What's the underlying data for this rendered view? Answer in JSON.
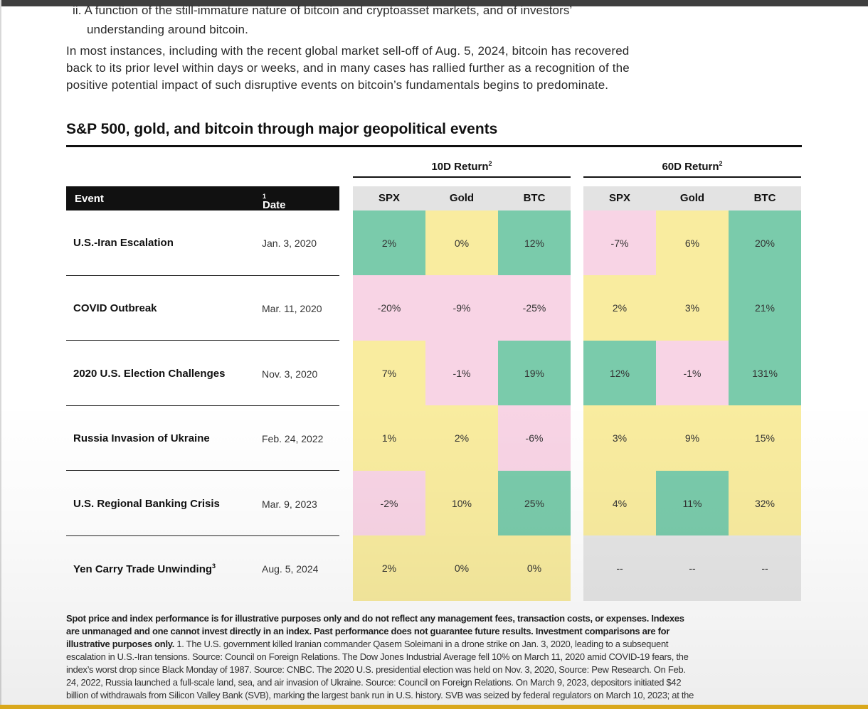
{
  "intro": {
    "item_line1": "ii.  A function of the still-immature nature of bitcoin and cryptoasset markets, and of investors’",
    "item_line2": "understanding around bitcoin.",
    "paragraph_lines": [
      "In most instances, including with the recent global market sell-off of Aug. 5, 2024, bitcoin has recovered",
      "back to its prior level within days or weeks, and in many cases has rallied further as a recognition of the",
      "positive potential impact of such disruptive events on bitcoin’s fundamentals begins to predominate."
    ]
  },
  "table": {
    "title": "S&P 500, gold, and bitcoin through major geopolitical events",
    "group_10d": "10D Return",
    "group_60d": "60D Return",
    "group_sup": "2",
    "header_event": "Event",
    "header_date": "Date",
    "header_date_sup": "1",
    "columns": [
      "SPX",
      "Gold",
      "BTC",
      "SPX",
      "Gold",
      "BTC"
    ],
    "colors": {
      "green": "#7acbab",
      "yellow": "#f9ec9f",
      "pink": "#f8d4e5",
      "gray": "#e6e6e6"
    },
    "rows": [
      {
        "event": "U.S.-Iran Escalation",
        "sup": "",
        "date": "Jan. 3, 2020",
        "values": [
          "2%",
          "0%",
          "12%",
          "-7%",
          "6%",
          "20%"
        ],
        "colors": [
          "green",
          "yellow",
          "green",
          "pink",
          "yellow",
          "green"
        ]
      },
      {
        "event": "COVID Outbreak",
        "sup": "",
        "date": "Mar. 11, 2020",
        "values": [
          "-20%",
          "-9%",
          "-25%",
          "2%",
          "3%",
          "21%"
        ],
        "colors": [
          "pink",
          "pink",
          "pink",
          "yellow",
          "yellow",
          "green"
        ]
      },
      {
        "event": "2020 U.S. Election Challenges",
        "sup": "",
        "date": "Nov. 3, 2020",
        "values": [
          "7%",
          "-1%",
          "19%",
          "12%",
          "-1%",
          "131%"
        ],
        "colors": [
          "yellow",
          "pink",
          "green",
          "green",
          "pink",
          "green"
        ]
      },
      {
        "event": "Russia Invasion of Ukraine",
        "sup": "",
        "date": "Feb. 24, 2022",
        "values": [
          "1%",
          "2%",
          "-6%",
          "3%",
          "9%",
          "15%"
        ],
        "colors": [
          "yellow",
          "yellow",
          "pink",
          "yellow",
          "yellow",
          "yellow"
        ]
      },
      {
        "event": "U.S. Regional Banking Crisis",
        "sup": "",
        "date": "Mar. 9, 2023",
        "values": [
          "-2%",
          "10%",
          "25%",
          "4%",
          "11%",
          "32%"
        ],
        "colors": [
          "pink",
          "yellow",
          "green",
          "yellow",
          "green",
          "yellow"
        ]
      },
      {
        "event": "Yen Carry Trade Unwinding",
        "sup": "3",
        "date": "Aug. 5, 2024",
        "values": [
          "2%",
          "0%",
          "0%",
          "--",
          "--",
          "--"
        ],
        "colors": [
          "yellow",
          "yellow",
          "yellow",
          "gray",
          "gray",
          "gray"
        ]
      }
    ]
  },
  "footnote": {
    "bold_line1": "Spot price and index performance is for illustrative purposes only and do not reflect any management fees, transaction costs, or expenses. Indexes",
    "bold_line2": "are unmanaged and one cannot invest directly in an index. Past performance does not guarantee future results. Investment comparisons are for",
    "bold_line3": "illustrative purposes only.",
    "line3_rest": " 1. The U.S. government killed Iranian commander Qasem Soleimani in a drone strike on Jan. 3, 2020, leading to a subsequent",
    "line4": "escalation in U.S.-Iran tensions. Source: Council on Foreign Relations. The Dow Jones Industrial Average fell 10% on March 11, 2020 amid COVID-19 fears, the",
    "line5": "index’s worst drop since Black Monday of 1987. Source: CNBC. The 2020 U.S. presidential election was held on Nov. 3, 2020,  Source: Pew Research. On Feb.",
    "line6": "24, 2022, Russia launched a full-scale land, sea, and air invasion of Ukraine. Source: Council on Foreign Relations. On March 9, 2023, depositors initiated $42",
    "line7": "billion of withdrawals from Silicon Valley Bank (SVB), marking the largest bank run in U.S. history. SVB was seized by federal regulators on March 10, 2023; at the"
  }
}
